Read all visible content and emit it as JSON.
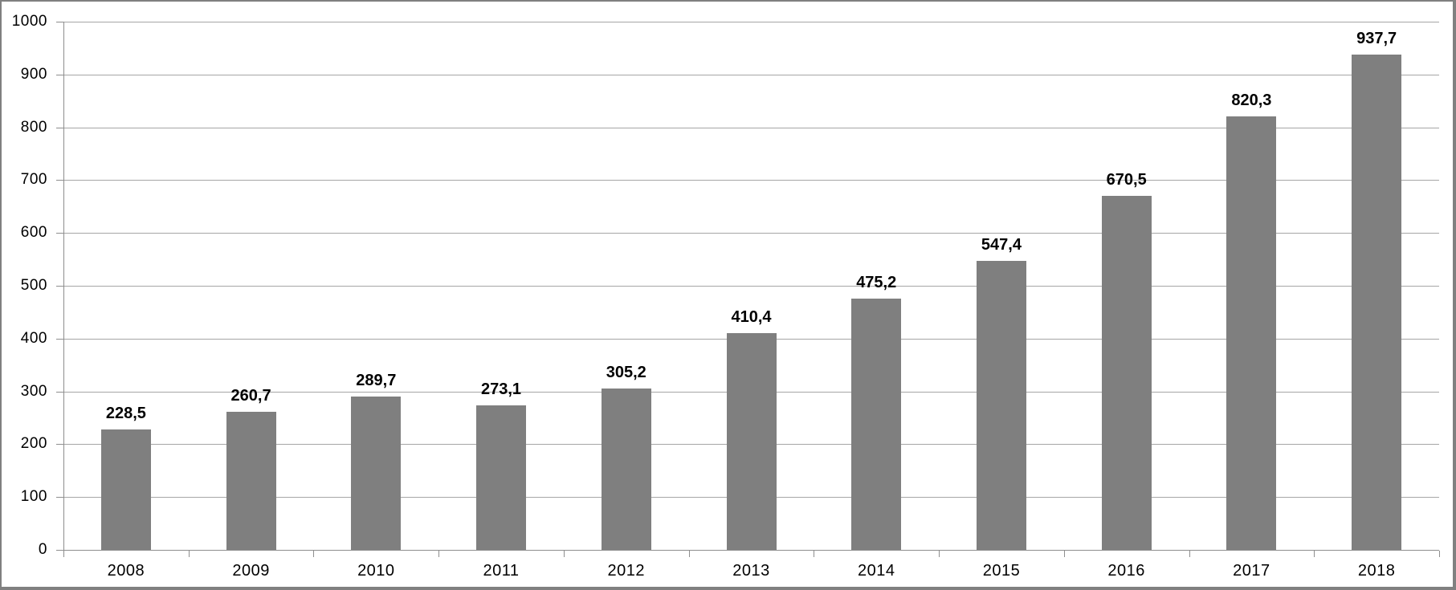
{
  "chart_data": {
    "type": "bar",
    "title": "",
    "xlabel": "",
    "ylabel": "",
    "categories": [
      "2008",
      "2009",
      "2010",
      "2011",
      "2012",
      "2013",
      "2014",
      "2015",
      "2016",
      "2017",
      "2018"
    ],
    "values": [
      228.5,
      260.7,
      289.7,
      273.1,
      305.2,
      410.4,
      475.2,
      547.4,
      670.5,
      820.3,
      937.7
    ],
    "value_labels": [
      "228,5",
      "260,7",
      "289,7",
      "273,1",
      "305,2",
      "410,4",
      "475,2",
      "547,4",
      "670,5",
      "820,3",
      "937,7"
    ],
    "ylim": [
      0,
      1000
    ],
    "ytick_step": 100,
    "ytick_labels": [
      "0",
      "100",
      "200",
      "300",
      "400",
      "500",
      "600",
      "700",
      "800",
      "900",
      "1000"
    ],
    "grid": true,
    "legend": "none",
    "colors": {
      "bar": "#7f7f7f",
      "gridline": "#a6a6a6",
      "axis": "#8e8e8e",
      "text": "#000000",
      "frame_border": "#808080",
      "background": "#ffffff"
    }
  }
}
